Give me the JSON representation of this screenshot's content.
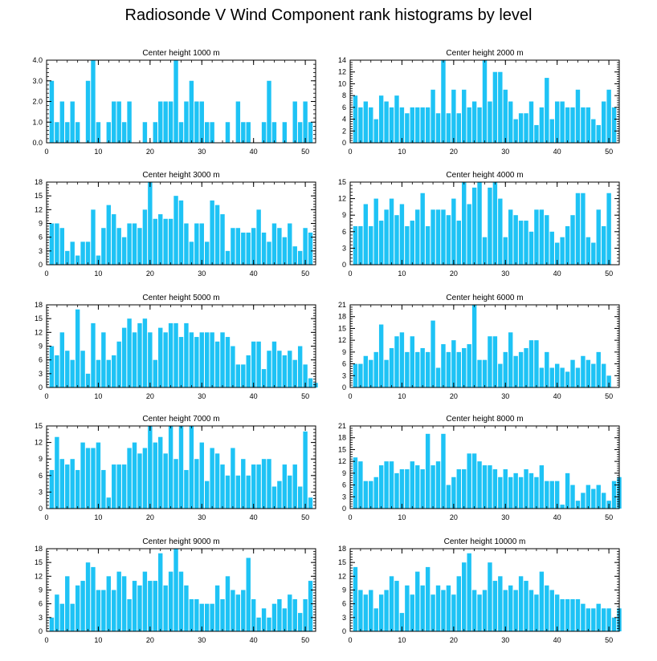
{
  "figure": {
    "title": "Radiosonde V Wind Component rank histograms by level",
    "bar_color": "#1ec3f5"
  },
  "chart_data": [
    {
      "type": "bar",
      "title": "Center height 1000 m",
      "xlim": [
        0,
        52
      ],
      "ylim": [
        0,
        4
      ],
      "xticks": [
        0,
        10,
        20,
        30,
        40,
        50
      ],
      "yticks": [
        0,
        1,
        2,
        3,
        4
      ],
      "ytick_labels": [
        "0.0",
        "1.0",
        "2.0",
        "3.0",
        "4.0"
      ],
      "values": [
        3,
        1,
        2,
        1,
        2,
        1,
        0,
        3,
        4,
        1,
        0,
        1,
        2,
        2,
        1,
        2,
        0,
        0,
        1,
        0,
        1,
        2,
        2,
        2,
        4,
        1,
        2,
        3,
        2,
        2,
        1,
        1,
        0,
        0,
        1,
        0,
        2,
        1,
        1,
        0,
        0,
        1,
        3,
        1,
        0,
        1,
        0,
        2,
        1,
        2,
        1,
        0
      ]
    },
    {
      "type": "bar",
      "title": "Center height 2000 m",
      "xlim": [
        0,
        52
      ],
      "ylim": [
        0,
        14
      ],
      "xticks": [
        0,
        10,
        20,
        30,
        40,
        50
      ],
      "yticks": [
        0,
        2,
        4,
        6,
        8,
        10,
        12,
        14
      ],
      "ytick_labels": [
        "0",
        "2",
        "4",
        "6",
        "8",
        "10",
        "12",
        "14"
      ],
      "values": [
        8,
        6,
        7,
        6,
        4,
        8,
        7,
        6,
        8,
        6,
        5,
        6,
        6,
        6,
        6,
        9,
        5,
        14,
        5,
        9,
        5,
        9,
        6,
        7,
        6,
        14,
        7,
        12,
        12,
        9,
        7,
        4,
        5,
        5,
        7,
        3,
        6,
        11,
        4,
        7,
        7,
        6,
        6,
        9,
        6,
        6,
        4,
        3,
        7,
        9,
        6,
        0
      ]
    },
    {
      "type": "bar",
      "title": "Center height 3000 m",
      "xlim": [
        0,
        52
      ],
      "ylim": [
        0,
        18
      ],
      "xticks": [
        0,
        10,
        20,
        30,
        40,
        50
      ],
      "yticks": [
        0,
        3,
        6,
        9,
        12,
        15,
        18
      ],
      "ytick_labels": [
        "0",
        "3",
        "6",
        "9",
        "12",
        "15",
        "18"
      ],
      "values": [
        9,
        9,
        8,
        3,
        5,
        2,
        5,
        5,
        12,
        2,
        8,
        13,
        11,
        8,
        6,
        9,
        9,
        8,
        12,
        18,
        10,
        11,
        10,
        10,
        15,
        14,
        9,
        5,
        9,
        9,
        5,
        14,
        13,
        11,
        3,
        8,
        8,
        7,
        7,
        8,
        12,
        7,
        5,
        9,
        8,
        6,
        9,
        4,
        3,
        8,
        7,
        0
      ]
    },
    {
      "type": "bar",
      "title": "Center height 4000 m",
      "xlim": [
        0,
        52
      ],
      "ylim": [
        0,
        15
      ],
      "xticks": [
        0,
        10,
        20,
        30,
        40,
        50
      ],
      "yticks": [
        0,
        3,
        6,
        9,
        12,
        15
      ],
      "ytick_labels": [
        "0",
        "3",
        "6",
        "9",
        "12",
        "15"
      ],
      "values": [
        7,
        7,
        11,
        7,
        12,
        8,
        10,
        12,
        9,
        11,
        7,
        8,
        10,
        13,
        7,
        10,
        10,
        10,
        9,
        12,
        8,
        15,
        11,
        14,
        15,
        5,
        14,
        15,
        12,
        5,
        10,
        9,
        8,
        8,
        6,
        10,
        10,
        9,
        6,
        4,
        5,
        7,
        9,
        13,
        13,
        5,
        4,
        10,
        7,
        13,
        0,
        0
      ]
    },
    {
      "type": "bar",
      "title": "Center height 5000 m",
      "xlim": [
        0,
        52
      ],
      "ylim": [
        0,
        18
      ],
      "xticks": [
        0,
        10,
        20,
        30,
        40,
        50
      ],
      "yticks": [
        0,
        3,
        6,
        9,
        12,
        15,
        18
      ],
      "ytick_labels": [
        "0",
        "3",
        "6",
        "9",
        "12",
        "15",
        "18"
      ],
      "values": [
        9,
        7,
        12,
        8,
        6,
        17,
        8,
        3,
        14,
        6,
        12,
        6,
        7,
        10,
        13,
        15,
        12,
        14,
        15,
        12,
        6,
        13,
        12,
        14,
        14,
        11,
        14,
        12,
        11,
        12,
        12,
        12,
        10,
        12,
        11,
        9,
        5,
        5,
        7,
        10,
        10,
        4,
        8,
        10,
        8,
        7,
        8,
        6,
        9,
        5,
        2,
        1
      ]
    },
    {
      "type": "bar",
      "title": "Center height 6000 m",
      "xlim": [
        0,
        52
      ],
      "ylim": [
        0,
        21
      ],
      "xticks": [
        0,
        10,
        20,
        30,
        40,
        50
      ],
      "yticks": [
        0,
        3,
        6,
        9,
        12,
        15,
        18,
        21
      ],
      "ytick_labels": [
        "0",
        "3",
        "6",
        "9",
        "12",
        "15",
        "18",
        "21"
      ],
      "values": [
        6,
        6,
        8,
        7,
        9,
        16,
        7,
        10,
        13,
        14,
        9,
        13,
        9,
        10,
        9,
        17,
        5,
        11,
        9,
        12,
        9,
        10,
        11,
        21,
        7,
        7,
        13,
        13,
        6,
        9,
        14,
        8,
        9,
        10,
        12,
        12,
        5,
        9,
        5,
        6,
        5,
        4,
        7,
        5,
        8,
        7,
        6,
        9,
        6,
        3,
        0,
        0
      ]
    },
    {
      "type": "bar",
      "title": "Center height 7000 m",
      "xlim": [
        0,
        52
      ],
      "ylim": [
        0,
        15
      ],
      "xticks": [
        0,
        10,
        20,
        30,
        40,
        50
      ],
      "yticks": [
        0,
        3,
        6,
        9,
        12,
        15
      ],
      "ytick_labels": [
        "0",
        "3",
        "6",
        "9",
        "12",
        "15"
      ],
      "values": [
        7,
        13,
        9,
        8,
        9,
        7,
        12,
        11,
        11,
        12,
        7,
        2,
        8,
        8,
        8,
        11,
        12,
        10,
        11,
        15,
        12,
        13,
        10,
        15,
        9,
        15,
        7,
        15,
        9,
        12,
        5,
        11,
        10,
        8,
        6,
        11,
        6,
        9,
        6,
        8,
        8,
        9,
        9,
        4,
        5,
        8,
        6,
        8,
        4,
        14,
        2,
        0
      ]
    },
    {
      "type": "bar",
      "title": "Center height 8000 m",
      "xlim": [
        0,
        52
      ],
      "ylim": [
        0,
        21
      ],
      "xticks": [
        0,
        10,
        20,
        30,
        40,
        50
      ],
      "yticks": [
        0,
        3,
        6,
        9,
        12,
        15,
        18,
        21
      ],
      "ytick_labels": [
        "0",
        "3",
        "6",
        "9",
        "12",
        "15",
        "18",
        "21"
      ],
      "values": [
        13,
        12,
        7,
        7,
        8,
        11,
        12,
        12,
        9,
        10,
        10,
        12,
        11,
        10,
        19,
        11,
        12,
        19,
        6,
        8,
        10,
        10,
        14,
        14,
        12,
        11,
        11,
        10,
        8,
        10,
        8,
        9,
        8,
        10,
        9,
        8,
        11,
        7,
        7,
        7,
        1,
        9,
        6,
        2,
        4,
        6,
        5,
        6,
        4,
        2,
        7,
        8
      ]
    },
    {
      "type": "bar",
      "title": "Center height 9000 m",
      "xlim": [
        0,
        52
      ],
      "ylim": [
        0,
        18
      ],
      "xticks": [
        0,
        10,
        20,
        30,
        40,
        50
      ],
      "yticks": [
        0,
        3,
        6,
        9,
        12,
        15,
        18
      ],
      "ytick_labels": [
        "0",
        "3",
        "6",
        "9",
        "12",
        "15",
        "18"
      ],
      "values": [
        3,
        8,
        6,
        12,
        6,
        10,
        11,
        15,
        14,
        9,
        9,
        12,
        9,
        13,
        12,
        7,
        11,
        10,
        13,
        11,
        11,
        17,
        10,
        13,
        18,
        13,
        10,
        7,
        7,
        6,
        6,
        6,
        10,
        7,
        12,
        9,
        8,
        9,
        16,
        7,
        3,
        5,
        3,
        6,
        7,
        5,
        8,
        7,
        4,
        7,
        11,
        0
      ]
    },
    {
      "type": "bar",
      "title": "Center height 10000 m",
      "xlim": [
        0,
        52
      ],
      "ylim": [
        0,
        18
      ],
      "xticks": [
        0,
        10,
        20,
        30,
        40,
        50
      ],
      "yticks": [
        0,
        3,
        6,
        9,
        12,
        15,
        18
      ],
      "ytick_labels": [
        "0",
        "3",
        "6",
        "9",
        "12",
        "15",
        "18"
      ],
      "values": [
        14,
        9,
        8,
        9,
        5,
        8,
        9,
        12,
        11,
        4,
        10,
        8,
        13,
        10,
        14,
        8,
        10,
        9,
        10,
        8,
        12,
        15,
        17,
        9,
        8,
        9,
        15,
        11,
        12,
        9,
        10,
        9,
        12,
        11,
        9,
        8,
        13,
        10,
        9,
        8,
        7,
        7,
        7,
        7,
        6,
        5,
        5,
        6,
        5,
        5,
        3,
        5
      ]
    }
  ]
}
